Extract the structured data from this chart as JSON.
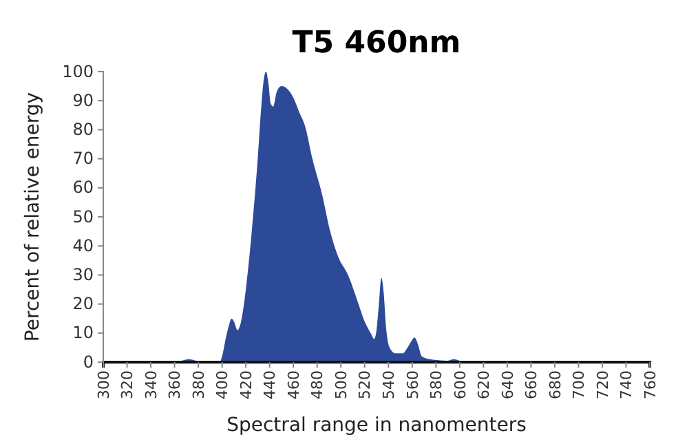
{
  "chart_data": {
    "type": "area",
    "title": "T5 460nm",
    "xlabel": "Spectral range in nanomenters",
    "ylabel": "Percent of relative energy",
    "x": [
      300,
      360,
      366,
      372,
      378,
      384,
      398,
      400,
      403,
      406,
      408,
      410,
      413,
      416,
      420,
      425,
      430,
      433,
      435,
      437,
      439,
      441,
      443,
      446,
      450,
      455,
      460,
      465,
      470,
      476,
      484,
      491,
      498,
      506,
      514,
      520,
      525,
      528,
      530,
      532,
      534,
      536,
      538,
      541,
      546,
      552,
      556,
      559,
      562,
      565,
      568,
      575,
      590,
      595,
      600,
      610,
      760
    ],
    "series": [
      {
        "color": "#2d4a99",
        "values": [
          0,
          0,
          0.5,
          1,
          0.5,
          0,
          0,
          2,
          8,
          13,
          15,
          14,
          11,
          14,
          25,
          45,
          70,
          88,
          97,
          100,
          96,
          89,
          88,
          93,
          95,
          94,
          91,
          86,
          81,
          70,
          58,
          45,
          36,
          30,
          21,
          14,
          10,
          8,
          11,
          20,
          29,
          24,
          12,
          5,
          3,
          3,
          5,
          7,
          8.5,
          6,
          2,
          1,
          0.5,
          1,
          0.5,
          0,
          0
        ]
      }
    ],
    "xlim": [
      300,
      760
    ],
    "ylim": [
      0,
      100
    ],
    "xticks": [
      300,
      320,
      340,
      360,
      380,
      400,
      420,
      440,
      460,
      480,
      500,
      520,
      540,
      560,
      580,
      600,
      620,
      640,
      660,
      680,
      700,
      720,
      740,
      760
    ],
    "yticks": [
      0,
      10,
      20,
      30,
      40,
      50,
      60,
      70,
      80,
      90,
      100
    ],
    "grid": false
  }
}
